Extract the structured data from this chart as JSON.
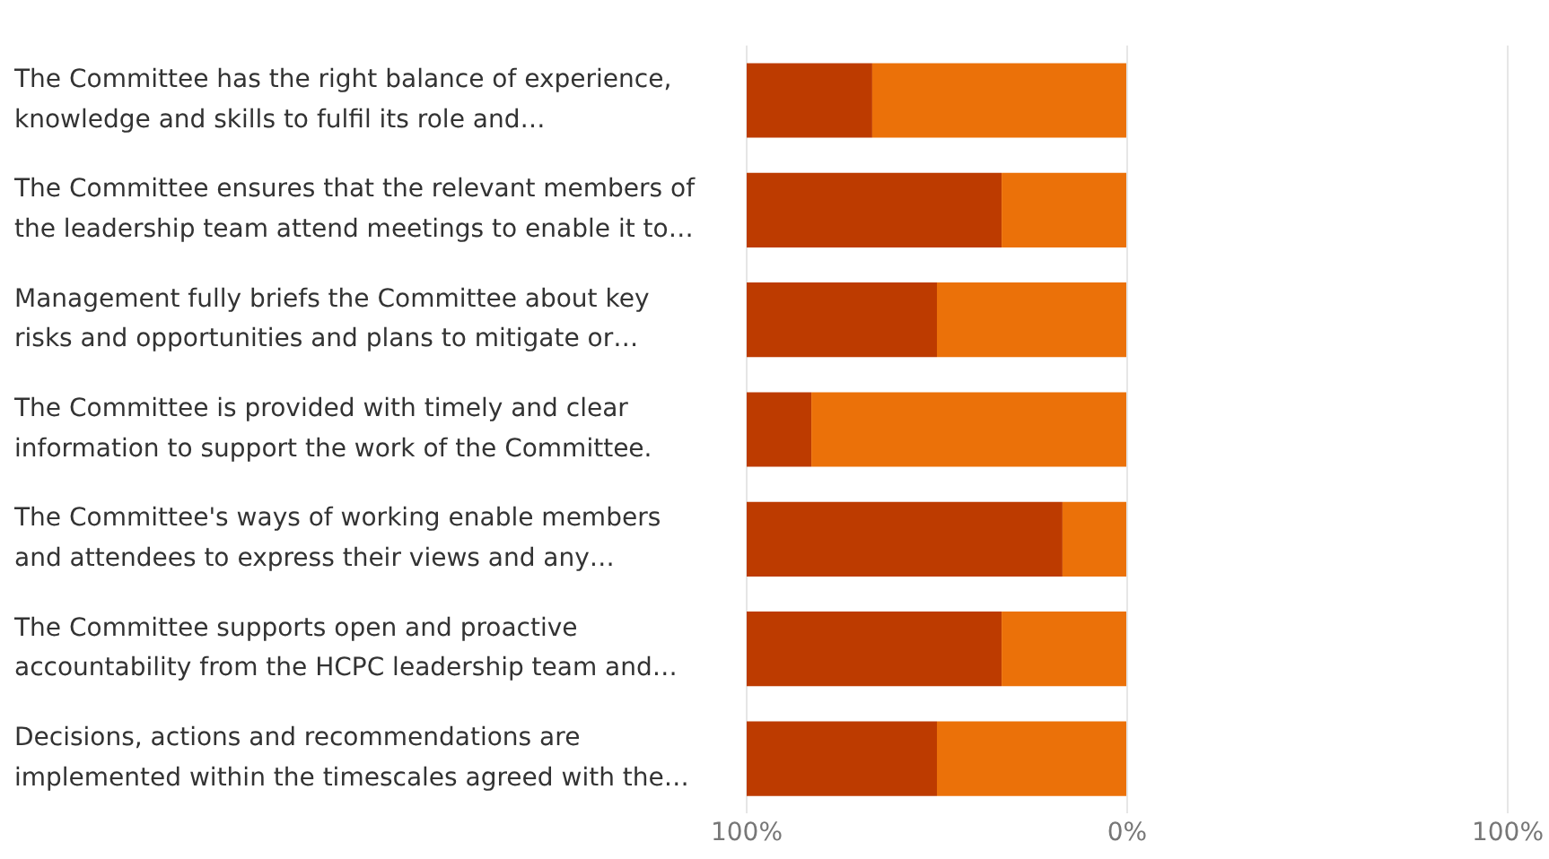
{
  "chart_data": {
    "type": "bar",
    "orientation": "horizontal",
    "stacked": true,
    "categories": [
      "The Committee has the right balance of experience, knowledge and skills to fulfil its role and…",
      "The Committee ensures that the relevant members of the leadership team attend meetings to enable it to…",
      "Management fully briefs the Committee about key risks and opportunities and plans to mitigate or…",
      "The Committee is provided with timely and clear information to support the work of the Committee.",
      "The Committee's ways of working enable members and attendees to express their views and any…",
      "The Committee supports open and proactive accountability from the HCPC leadership team and…",
      "Decisions, actions and recommendations are implemented within the timescales agreed with the…"
    ],
    "series": [
      {
        "color": "#eb7109",
        "values": [
          -67,
          -33,
          -50,
          -83,
          -17,
          -33,
          -50
        ]
      },
      {
        "color": "#bd3b00",
        "values": [
          -33,
          -67,
          -50,
          -17,
          -83,
          -67,
          -50
        ]
      }
    ],
    "xlim": [
      -100,
      100
    ],
    "xticks": [
      {
        "value": -100,
        "label": "100%"
      },
      {
        "value": 0,
        "label": "0%"
      },
      {
        "value": 100,
        "label": "100%"
      }
    ],
    "grid": "x",
    "legend": false
  }
}
